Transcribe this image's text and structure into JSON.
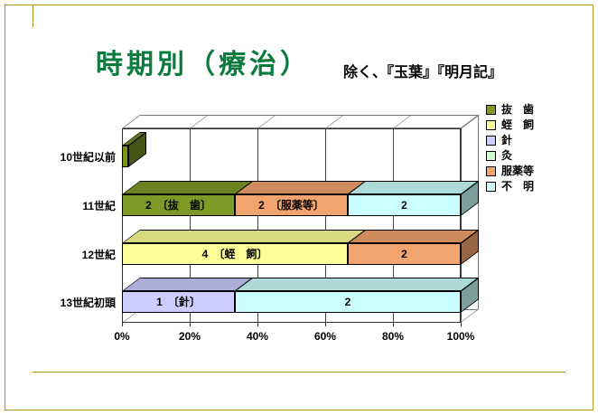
{
  "slide": {
    "title": "時期別（療治）",
    "subtitle": "除く、『玉葉』『明月記』",
    "title_color": "#0c7b3e",
    "border_color": "#ad9723",
    "background_color": "#ffffff"
  },
  "legend": {
    "items": [
      {
        "label": "抜　歯",
        "color": "#7f9926"
      },
      {
        "label": "蛭　飼",
        "color": "#ffff99"
      },
      {
        "label": "針",
        "color": "#ccccff"
      },
      {
        "label": "灸",
        "color": "#ccffcc"
      },
      {
        "label": "服薬等",
        "color": "#f2a46e"
      },
      {
        "label": "不　明",
        "color": "#ccffff"
      }
    ]
  },
  "chart_data": {
    "type": "bar",
    "variant": "3d-horizontal-100pct-stacked",
    "title": "",
    "xlabel": "",
    "ylabel": "",
    "xlim": [
      0,
      100
    ],
    "x_ticks": [
      "0%",
      "20%",
      "40%",
      "60%",
      "80%",
      "100%"
    ],
    "grid": true,
    "legend_position": "right",
    "categories": [
      "10世紀以前",
      "11世紀",
      "12世紀",
      "13世紀初頭"
    ],
    "series_colors": {
      "抜歯": "#7f9926",
      "蛭飼": "#ffff99",
      "針": "#ccccff",
      "灸": "#ccffcc",
      "服薬等": "#f2a46e",
      "不明": "#ccffff"
    },
    "rows": [
      {
        "category": "10世紀以前",
        "segments": []
      },
      {
        "category": "11世紀",
        "segments": [
          {
            "series": "抜歯",
            "value": 2,
            "pct": 33.33,
            "label": "2　〔抜　歯〕"
          },
          {
            "series": "服薬等",
            "value": 2,
            "pct": 33.34,
            "label": "2　〔服薬等〕"
          },
          {
            "series": "不明",
            "value": 2,
            "pct": 33.33,
            "label": "2"
          }
        ]
      },
      {
        "category": "12世紀",
        "segments": [
          {
            "series": "蛭飼",
            "value": 4,
            "pct": 66.67,
            "label": "4　〔蛭　飼〕"
          },
          {
            "series": "服薬等",
            "value": 2,
            "pct": 33.33,
            "label": "2"
          }
        ]
      },
      {
        "category": "13世紀初頭",
        "segments": [
          {
            "series": "針",
            "value": 1,
            "pct": 33.33,
            "label": "1　〔針〕"
          },
          {
            "series": "不明",
            "value": 2,
            "pct": 66.67,
            "label": "2"
          }
        ]
      }
    ]
  }
}
